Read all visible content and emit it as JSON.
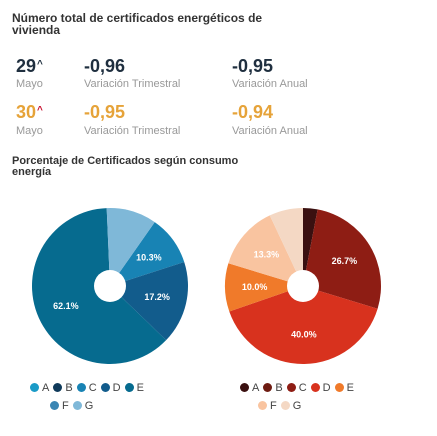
{
  "title": "Número total de certificados energéticos de vivienda",
  "stats": [
    {
      "value": "29",
      "value_color": "#1f2f3f",
      "arrow_color": "#1f2f3f",
      "period": "Mayo",
      "quarterly_value": "-0,96",
      "quarterly_label": "Variación Trimestral",
      "quarterly_color": "#1f2f3f",
      "annual_value": "-0,95",
      "annual_label": "Variación Anual",
      "annual_color": "#1f2f3f"
    },
    {
      "value": "30",
      "value_color": "#e6a339",
      "arrow_color": "#c8102e",
      "period": "Mayo",
      "quarterly_value": "-0,95",
      "quarterly_label": "Variación Trimestral",
      "quarterly_color": "#e6a339",
      "annual_value": "-0,94",
      "annual_label": "Variación Anual",
      "annual_color": "#e6a339"
    }
  ],
  "arrow_glyph": "^",
  "section_title": "Porcentaje de Certificados según consumo energía",
  "chart_data": [
    {
      "type": "pie",
      "categories": [
        "A",
        "B",
        "C",
        "D",
        "E",
        "F",
        "G"
      ],
      "values": [
        0,
        0,
        10.3,
        17.2,
        62.1,
        0,
        10.4
      ],
      "labels": [
        "",
        "",
        "10.3%",
        "17.2%",
        "62.1%",
        "",
        ""
      ],
      "colors": [
        "#1a9bc7",
        "#0f3a5a",
        "#1883b4",
        "#125c8c",
        "#066b8f",
        "#3b86b3",
        "#7fb8d8"
      ],
      "legend": [
        "A",
        "B",
        "C",
        "D",
        "E",
        "F",
        "G"
      ],
      "legend_colors": [
        "#1a9bc7",
        "#0f3a5a",
        "#1883b4",
        "#125c8c",
        "#066b8f",
        "#3b86b3",
        "#7fb8d8"
      ],
      "legend_placement": "bottom"
    },
    {
      "type": "pie",
      "categories": [
        "A",
        "B",
        "C",
        "D",
        "E",
        "F",
        "G"
      ],
      "values": [
        3.0,
        0,
        26.7,
        40.0,
        10.0,
        13.3,
        7.0
      ],
      "labels": [
        "",
        "",
        "26.7%",
        "40.0%",
        "10.0%",
        "13.3%",
        ""
      ],
      "colors": [
        "#3a1010",
        "#6e1c12",
        "#8e1d14",
        "#d8321e",
        "#f07a2a",
        "#f9c4a0",
        "#f4d8c4"
      ],
      "legend": [
        "A",
        "B",
        "C",
        "D",
        "E",
        "F",
        "G"
      ],
      "legend_colors": [
        "#3a1010",
        "#6e1c12",
        "#8e1d14",
        "#d8321e",
        "#f07a2a",
        "#f9c4a0",
        "#f4d8c4"
      ],
      "legend_placement": "bottom"
    }
  ]
}
